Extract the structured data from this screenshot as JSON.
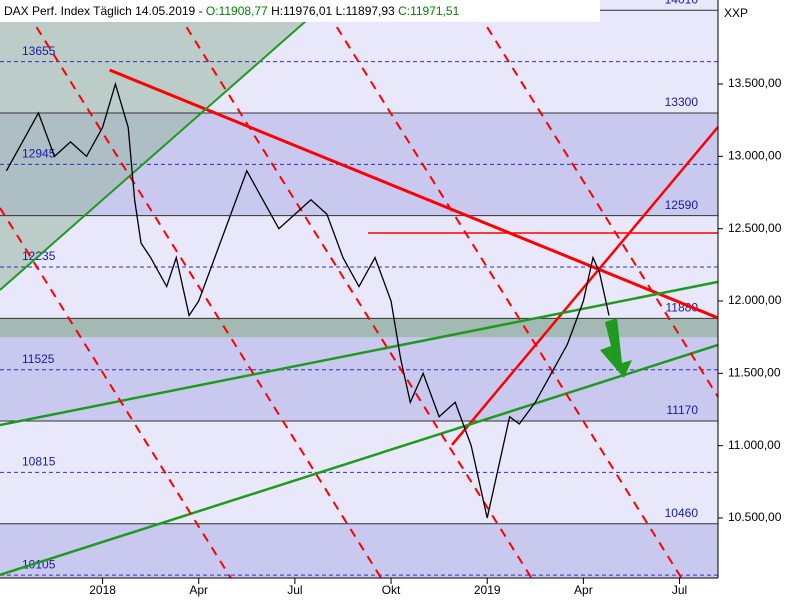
{
  "chart_data": {
    "type": "line",
    "title_parts": [
      {
        "text": "DAX Perf. Index Täglich  14.05.2019 - ",
        "color": "#000000"
      },
      {
        "text": "O:11908,77",
        "color": "#008000"
      },
      {
        "text": " H:11976,01 L:11897,93 ",
        "color": "#000000"
      },
      {
        "text": "C:11971,51",
        "color": "#008000"
      }
    ],
    "axis_label": "XXP",
    "xlim": [
      -3.2,
      19.2
    ],
    "ylim": [
      10085,
      14081
    ],
    "xticks": [
      {
        "value": 0,
        "label": "2018"
      },
      {
        "value": 3,
        "label": "Apr"
      },
      {
        "value": 6,
        "label": "Jul"
      },
      {
        "value": 9,
        "label": "Okt"
      },
      {
        "value": 12,
        "label": "2019"
      },
      {
        "value": 15,
        "label": "Apr"
      },
      {
        "value": 18,
        "label": "Jul"
      }
    ],
    "yticks": [
      {
        "value": 10500,
        "label": "10.500,00"
      },
      {
        "value": 11000,
        "label": "11.000,00"
      },
      {
        "value": 11500,
        "label": "11.500,00"
      },
      {
        "value": 12000,
        "label": "12.000,00"
      },
      {
        "value": 12500,
        "label": "12.500,00"
      },
      {
        "value": 13000,
        "label": "13.000,00"
      },
      {
        "value": 13500,
        "label": "13.500,00"
      }
    ],
    "levels": [
      14010,
      13655,
      13300,
      12945,
      12590,
      12235,
      11880,
      11525,
      11170,
      10815,
      10460,
      10105
    ],
    "band_colors": [
      "#e8e8fa",
      "#c9c9f0"
    ],
    "support_zone": [
      11750,
      11880
    ],
    "series": [
      {
        "name": "DAX",
        "color": "#000000",
        "x": [
          -3,
          -2.5,
          -2,
          -1.5,
          -1,
          -0.5,
          0,
          0.4,
          0.8,
          1,
          1.2,
          1.5,
          2,
          2.3,
          2.7,
          3,
          3.5,
          4,
          4.5,
          5,
          5.5,
          6,
          6.5,
          7,
          7.5,
          8,
          8.5,
          9,
          9.3,
          9.6,
          10,
          10.5,
          11,
          11.5,
          12,
          12.3,
          12.7,
          13,
          13.5,
          14,
          14.5,
          15,
          15.3,
          15.5,
          15.8
        ],
        "values": [
          12900,
          13100,
          13300,
          13000,
          13100,
          13000,
          13200,
          13500,
          13200,
          12700,
          12400,
          12300,
          12100,
          12300,
          11900,
          12000,
          12300,
          12600,
          12900,
          12700,
          12500,
          12600,
          12700,
          12600,
          12300,
          12100,
          12300,
          12000,
          11600,
          11300,
          11500,
          11200,
          11300,
          11000,
          10500,
          10800,
          11200,
          11150,
          11300,
          11500,
          11700,
          12000,
          12300,
          12200,
          11900
        ]
      }
    ],
    "trend_lines": [
      {
        "color": "#ff0000",
        "width": 3,
        "dash": false,
        "x": [
          0.22,
          19.2
        ],
        "values": [
          13597,
          11883
        ]
      },
      {
        "color": "#ff0000",
        "width": 2.5,
        "dash": false,
        "x": [
          10.9,
          19.2
        ],
        "values": [
          11005,
          13203
        ]
      },
      {
        "color": "#ff0000",
        "width": 1.5,
        "dash": false,
        "x": [
          8.28,
          19.2
        ],
        "values": [
          12470,
          12470
        ]
      },
      {
        "color": "#1e9a1e",
        "width": 2.5,
        "dash": false,
        "x": [
          -3.2,
          19.2
        ],
        "values": [
          10107,
          11696
        ]
      },
      {
        "color": "#1e9a1e",
        "width": 2.5,
        "dash": false,
        "x": [
          -3.2,
          19.2
        ],
        "values": [
          11143,
          12132
        ]
      },
      {
        "color": "#1e9a1e",
        "width": 2,
        "dash": false,
        "x": [
          -3.2,
          7.09
        ],
        "values": [
          12076,
          14081
        ]
      },
      {
        "color": "#ff0000",
        "width": 2,
        "dash": true,
        "x": [
          -3.2,
          4.0
        ],
        "values": [
          12644,
          10085
        ]
      },
      {
        "color": "#ff0000",
        "width": 2,
        "dash": true,
        "x": [
          -2.59,
          8.69
        ],
        "values": [
          14081,
          10085
        ]
      },
      {
        "color": "#ff0000",
        "width": 2,
        "dash": true,
        "x": [
          2.09,
          13.38
        ],
        "values": [
          14081,
          10085
        ]
      },
      {
        "color": "#ff0000",
        "width": 2,
        "dash": true,
        "x": [
          6.78,
          18.06
        ],
        "values": [
          14081,
          10085
        ]
      },
      {
        "color": "#ff0000",
        "width": 2,
        "dash": true,
        "x": [
          11.47,
          19.2
        ],
        "values": [
          14081,
          11337
        ]
      }
    ]
  }
}
